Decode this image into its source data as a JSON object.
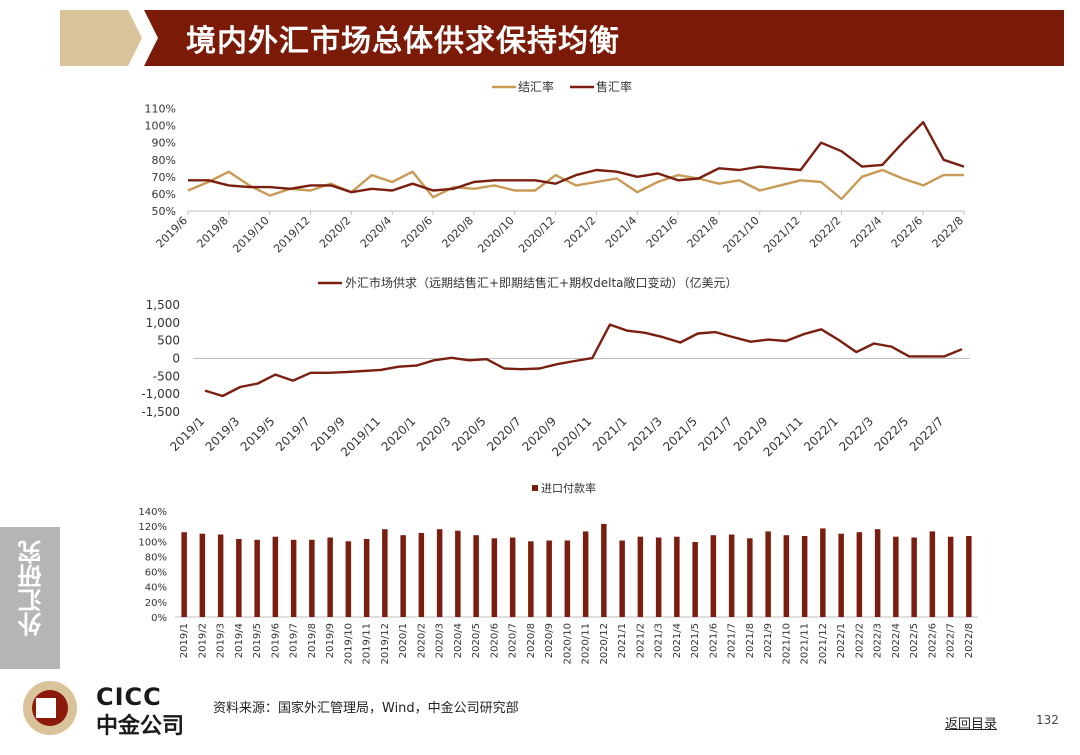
{
  "title": "境内外汇市场总体供求保持均衡",
  "side_label": "外汇研究",
  "logo": {
    "en": "CICC",
    "cn": "中金公司"
  },
  "source": "资料来源：国家外汇管理局，Wind，中金公司研究部",
  "back_link": "返回目录",
  "page_number": "132",
  "colors": {
    "header_red": "#7b1a06",
    "header_tan": "#d8c39a",
    "settle": "#c99a55",
    "sale": "#7a1f10",
    "logo_red": "#8b1a0a"
  },
  "chart_data": [
    {
      "type": "line",
      "legend_position": "top",
      "x": [
        "2019/6",
        "2019/7",
        "2019/8",
        "2019/9",
        "2019/10",
        "2019/11",
        "2019/12",
        "2020/1",
        "2020/2",
        "2020/3",
        "2020/4",
        "2020/5",
        "2020/6",
        "2020/7",
        "2020/8",
        "2020/9",
        "2020/10",
        "2020/11",
        "2020/12",
        "2021/1",
        "2021/2",
        "2021/3",
        "2021/4",
        "2021/5",
        "2021/6",
        "2021/7",
        "2021/8",
        "2021/9",
        "2021/10",
        "2021/11",
        "2021/12",
        "2022/1",
        "2022/2",
        "2022/3",
        "2022/4",
        "2022/5",
        "2022/6",
        "2022/7",
        "2022/8"
      ],
      "tick_labels": [
        "2019/6",
        "2019/8",
        "2019/10",
        "2019/12",
        "2020/2",
        "2020/4",
        "2020/6",
        "2020/8",
        "2020/10",
        "2020/12",
        "2021/2",
        "2021/4",
        "2021/6",
        "2021/8",
        "2021/10",
        "2021/12",
        "2022/2",
        "2022/4",
        "2022/6",
        "2022/8"
      ],
      "y_ticks": [
        "110%",
        "100%",
        "90%",
        "80%",
        "70%",
        "60%",
        "50%"
      ],
      "ylim": [
        50,
        110
      ],
      "series": [
        {
          "name": "结汇率",
          "values": [
            62,
            67,
            73,
            65,
            59,
            63,
            62,
            66,
            61,
            71,
            67,
            73,
            58,
            64,
            63,
            65,
            62,
            62,
            71,
            65,
            67,
            69,
            61,
            67,
            71,
            69,
            66,
            68,
            62,
            65,
            68,
            67,
            57,
            70,
            74,
            69,
            65,
            71,
            71
          ]
        },
        {
          "name": "售汇率",
          "values": [
            68,
            68,
            65,
            64,
            64,
            63,
            65,
            65,
            61,
            63,
            62,
            66,
            62,
            63,
            67,
            68,
            68,
            68,
            66,
            71,
            74,
            73,
            70,
            72,
            68,
            69,
            75,
            74,
            76,
            75,
            74,
            90,
            85,
            76,
            77,
            90,
            102,
            80,
            76
          ]
        }
      ]
    },
    {
      "type": "line",
      "legend_position": "top",
      "x": [
        "2019/1",
        "2019/2",
        "2019/3",
        "2019/4",
        "2019/5",
        "2019/6",
        "2019/7",
        "2019/8",
        "2019/9",
        "2019/10",
        "2019/11",
        "2019/12",
        "2020/1",
        "2020/2",
        "2020/3",
        "2020/4",
        "2020/5",
        "2020/6",
        "2020/7",
        "2020/8",
        "2020/9",
        "2020/10",
        "2020/11",
        "2020/12",
        "2021/1",
        "2021/2",
        "2021/3",
        "2021/4",
        "2021/5",
        "2021/6",
        "2021/7",
        "2021/8",
        "2021/9",
        "2021/10",
        "2021/11",
        "2021/12",
        "2022/1",
        "2022/2",
        "2022/3",
        "2022/4",
        "2022/5",
        "2022/6",
        "2022/7",
        "2022/8"
      ],
      "tick_labels": [
        "2019/1",
        "2019/3",
        "2019/5",
        "2019/7",
        "2019/9",
        "2019/11",
        "2020/1",
        "2020/3",
        "2020/5",
        "2020/7",
        "2020/9",
        "2020/11",
        "2021/1",
        "2021/3",
        "2021/5",
        "2021/7",
        "2021/9",
        "2021/11",
        "2022/1",
        "2022/3",
        "2022/5",
        "2022/7"
      ],
      "y_ticks": [
        "1,500",
        "1,000",
        "500",
        "0",
        "-500",
        "-1,000",
        "-1,500"
      ],
      "ylim": [
        -1500,
        1500
      ],
      "series": [
        {
          "name": "外汇市场供求（远期结售汇+即期结售汇+期权delta敞口变动）（亿美元）",
          "values": [
            -900,
            -1050,
            -800,
            -700,
            -450,
            -620,
            -400,
            -400,
            -380,
            -350,
            -320,
            -230,
            -200,
            -50,
            20,
            -50,
            -20,
            -280,
            -300,
            -280,
            -160,
            -70,
            10,
            950,
            780,
            720,
            600,
            450,
            700,
            740,
            600,
            470,
            530,
            490,
            680,
            820,
            520,
            180,
            420,
            330,
            60,
            60,
            60,
            260
          ]
        }
      ]
    },
    {
      "type": "bar",
      "legend_position": "top",
      "categories": [
        "2019/1",
        "2019/2",
        "2019/3",
        "2019/4",
        "2019/5",
        "2019/6",
        "2019/7",
        "2019/8",
        "2019/9",
        "2019/10",
        "2019/11",
        "2019/12",
        "2020/1",
        "2020/2",
        "2020/3",
        "2020/4",
        "2020/5",
        "2020/6",
        "2020/7",
        "2020/8",
        "2020/9",
        "2020/10",
        "2020/11",
        "2020/12",
        "2021/1",
        "2021/2",
        "2021/3",
        "2021/4",
        "2021/5",
        "2021/6",
        "2021/7",
        "2021/8",
        "2021/9",
        "2021/10",
        "2021/11",
        "2021/12",
        "2022/1",
        "2022/2",
        "2022/3",
        "2022/4",
        "2022/5",
        "2022/6",
        "2022/7",
        "2022/8"
      ],
      "y_ticks": [
        "140%",
        "120%",
        "100%",
        "80%",
        "60%",
        "40%",
        "20%",
        "0%"
      ],
      "ylim": [
        0,
        140
      ],
      "series": [
        {
          "name": "进口付款率",
          "values": [
            112,
            110,
            109,
            103,
            102,
            106,
            102,
            102,
            105,
            100,
            103,
            116,
            108,
            111,
            116,
            114,
            108,
            104,
            105,
            100,
            101,
            101,
            113,
            123,
            101,
            106,
            105,
            106,
            99,
            108,
            109,
            104,
            113,
            108,
            107,
            117,
            110,
            112,
            116,
            106,
            105,
            113,
            106,
            107
          ]
        }
      ]
    }
  ]
}
